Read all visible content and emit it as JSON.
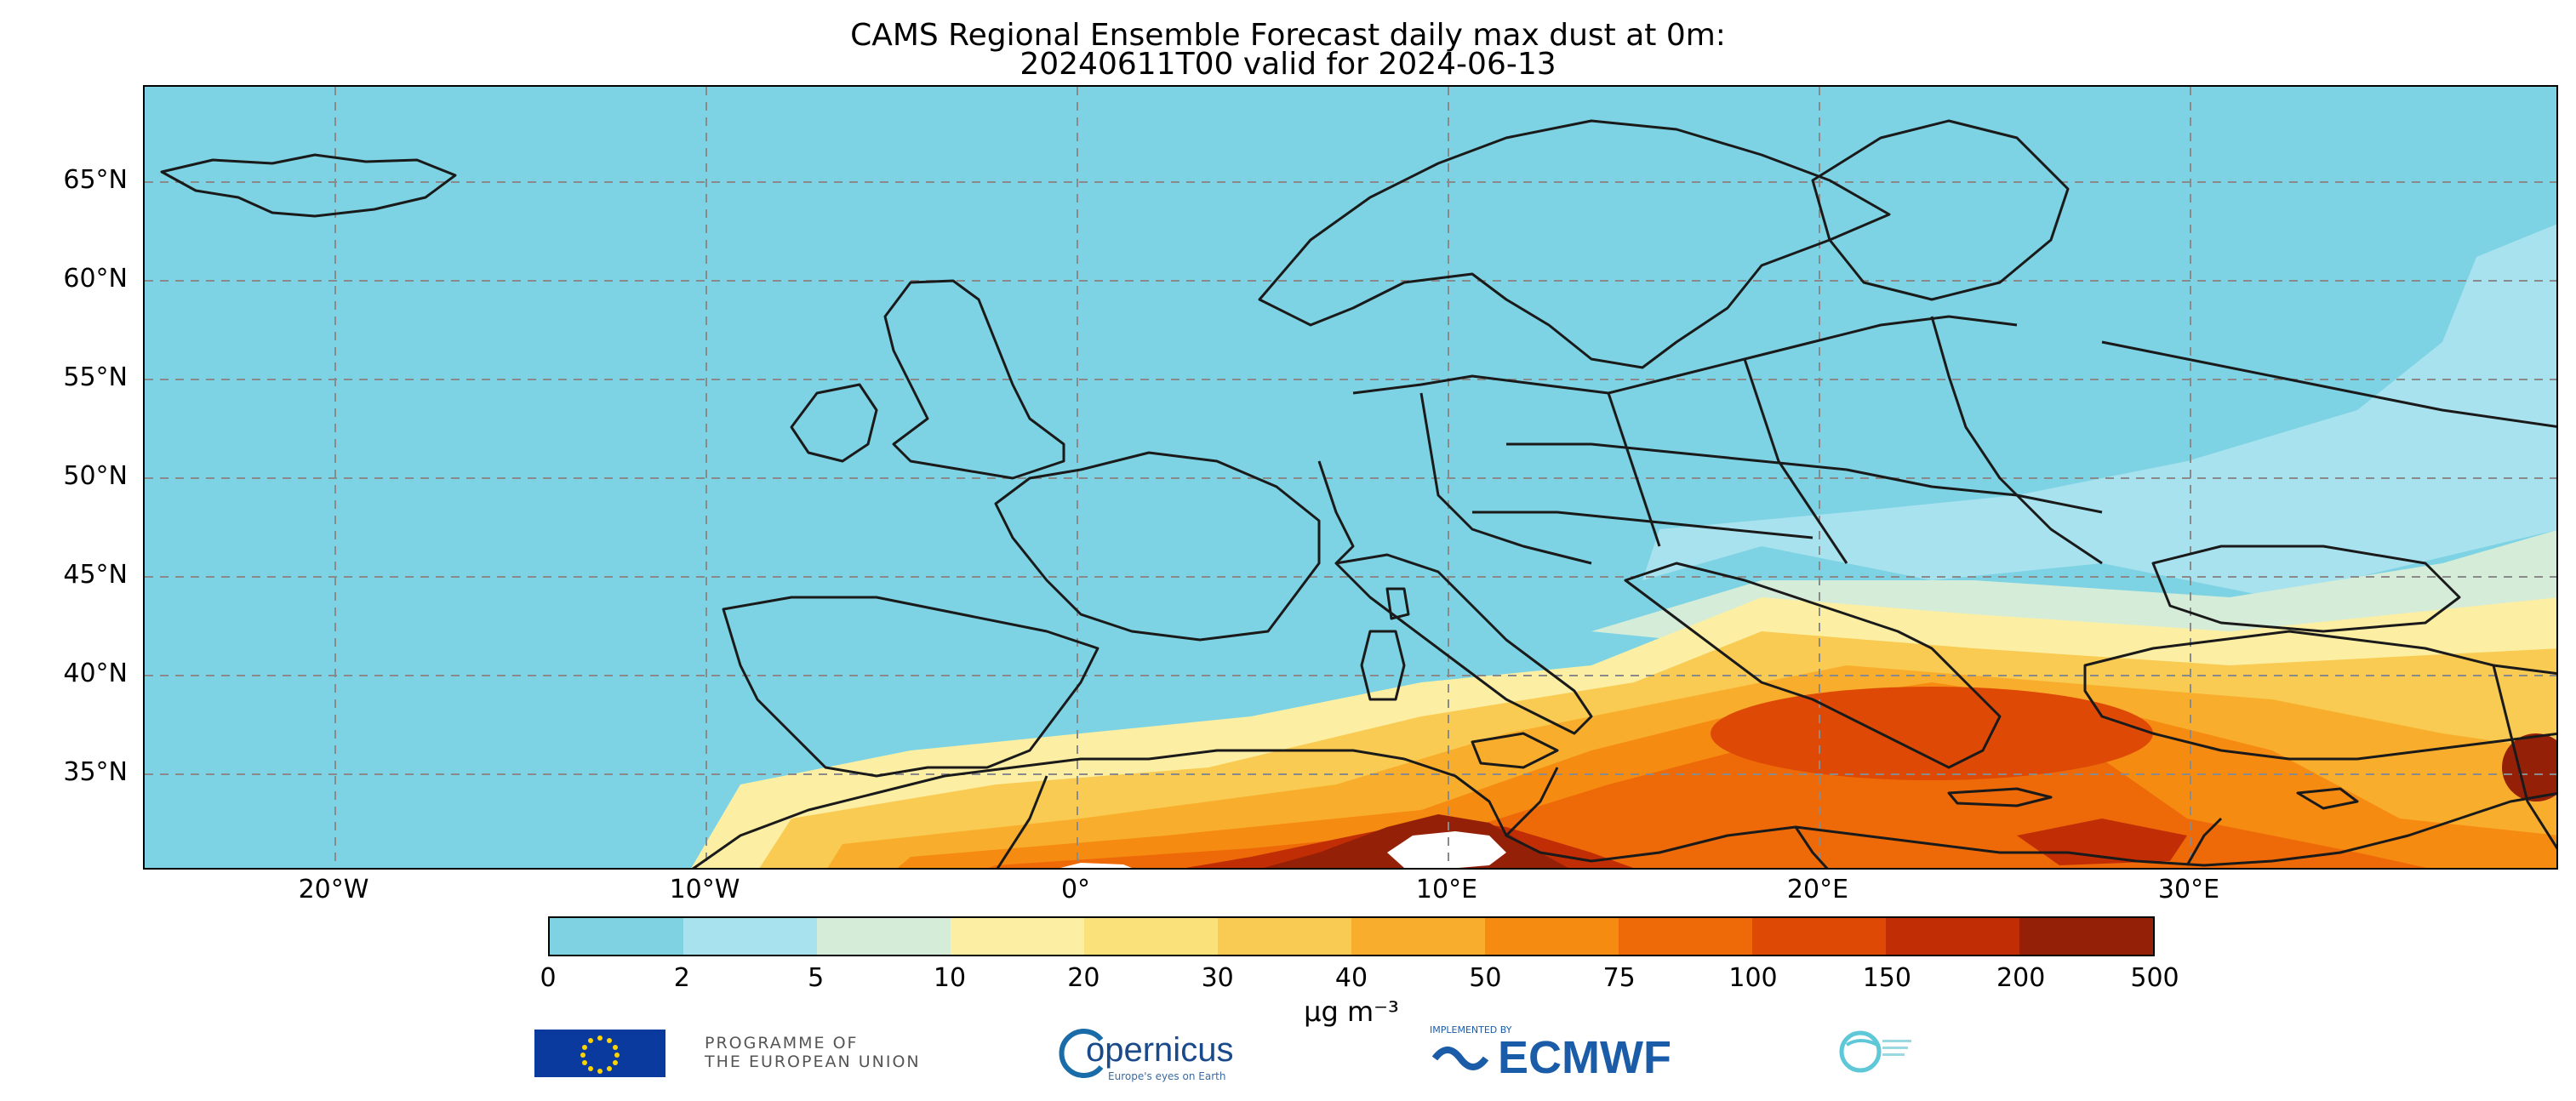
{
  "title": {
    "line1": "CAMS Regional Ensemble Forecast daily max dust at 0m:",
    "line2": "20240611T00 valid for 2024-06-13"
  },
  "map": {
    "lat_labels": [
      "65°N",
      "60°N",
      "55°N",
      "50°N",
      "45°N",
      "40°N",
      "35°N"
    ],
    "lon_labels": [
      "20°W",
      "10°W",
      "0°",
      "10°E",
      "20°E",
      "30°E"
    ],
    "extent": {
      "lon_min": -25,
      "lon_max": 40,
      "lat_min": 30,
      "lat_max": 70
    },
    "ocean_color": "#7dd3e3",
    "coastline_color": "#1a1a1a"
  },
  "colorbar": {
    "ticks": [
      "0",
      "2",
      "5",
      "10",
      "20",
      "30",
      "40",
      "50",
      "75",
      "100",
      "150",
      "200",
      "500"
    ],
    "colors": [
      "#7ed2e2",
      "#a8e2ee",
      "#d4ecd8",
      "#fcefa4",
      "#fbe17a",
      "#f9cb52",
      "#f8ae2c",
      "#f68b12",
      "#ee6a08",
      "#de4a06",
      "#c12e06",
      "#952008"
    ],
    "unit": "μg m⁻³"
  },
  "logos": {
    "eu_text_line1": "PROGRAMME OF",
    "eu_text_line2": "THE EUROPEAN UNION",
    "copernicus": "opernicus",
    "copernicus_sub": "Europe's eyes on Earth",
    "ecmwf_tag": "IMPLEMENTED BY",
    "ecmwf": "ECMWF"
  }
}
